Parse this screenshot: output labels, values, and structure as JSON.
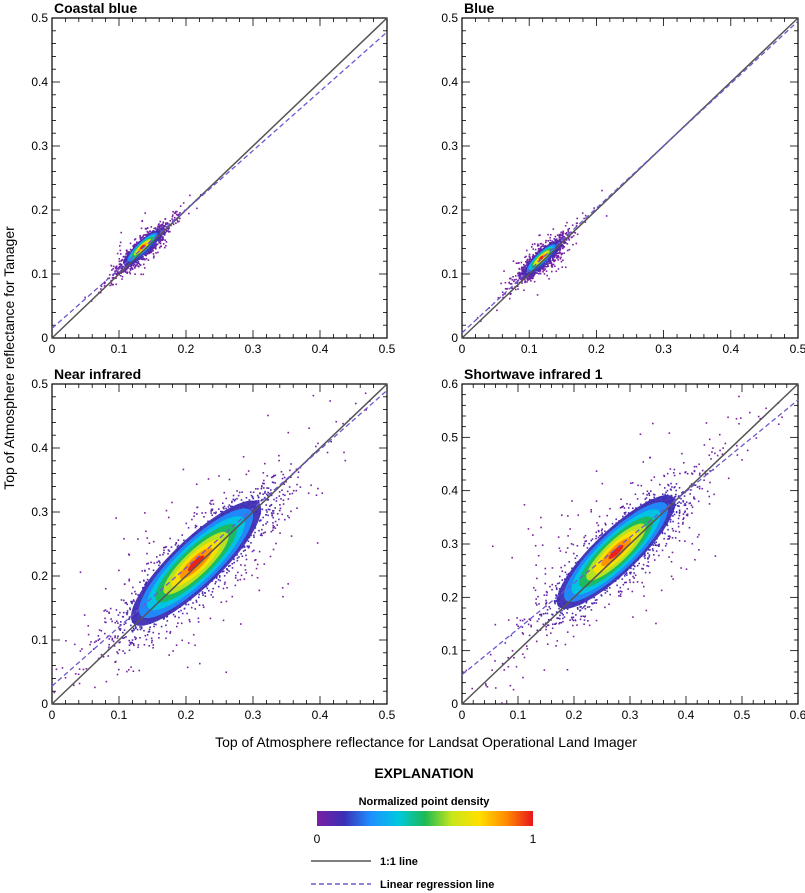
{
  "figure": {
    "xlabel": "Top of Atmosphere reflectance for Landsat Operational Land Imager",
    "ylabel": "Top of Atmosphere reflectance for Tanager"
  },
  "chart_data": [
    {
      "type": "scatter",
      "title": "Coastal blue",
      "xlim": [
        0,
        0.5
      ],
      "ylim": [
        0,
        0.5
      ],
      "xticks": [
        "0",
        "0.1",
        "0.2",
        "0.3",
        "0.4",
        "0.5"
      ],
      "yticks": [
        "0",
        "0.1",
        "0.2",
        "0.3",
        "0.4",
        "0.5"
      ],
      "one_to_one": {
        "x": [
          0,
          0.5
        ],
        "y": [
          0,
          0.5
        ]
      },
      "regression": {
        "x": [
          0,
          0.5
        ],
        "y": [
          0.015,
          0.478
        ]
      },
      "density_cluster": {
        "center": [
          0.135,
          0.142
        ],
        "spread": [
          0.013,
          0.01
        ],
        "tail_to": [
          0.19,
          0.185
        ]
      }
    },
    {
      "type": "scatter",
      "title": "Blue",
      "xlim": [
        0,
        0.5
      ],
      "ylim": [
        0,
        0.5
      ],
      "xticks": [
        "0",
        "0.1",
        "0.2",
        "0.3",
        "0.4",
        "0.5"
      ],
      "yticks": [
        "0",
        "0.1",
        "0.2",
        "0.3",
        "0.4",
        "0.5"
      ],
      "one_to_one": {
        "x": [
          0,
          0.5
        ],
        "y": [
          0,
          0.5
        ]
      },
      "regression": {
        "x": [
          0,
          0.5
        ],
        "y": [
          0.008,
          0.495
        ]
      },
      "density_cluster": {
        "center": [
          0.118,
          0.125
        ],
        "spread": [
          0.012,
          0.01
        ],
        "tail_to": [
          0.17,
          0.17
        ]
      }
    },
    {
      "type": "scatter",
      "title": "Near infrared",
      "xlim": [
        0,
        0.5
      ],
      "ylim": [
        0,
        0.5
      ],
      "xticks": [
        "0",
        "0.1",
        "0.2",
        "0.3",
        "0.4",
        "0.5"
      ],
      "yticks": [
        "0",
        "0.1",
        "0.2",
        "0.3",
        "0.4",
        "0.5"
      ],
      "one_to_one": {
        "x": [
          0,
          0.5
        ],
        "y": [
          0,
          0.5
        ]
      },
      "regression": {
        "x": [
          0,
          0.5
        ],
        "y": [
          0.028,
          0.49
        ]
      },
      "density_cluster": {
        "center": [
          0.215,
          0.22
        ],
        "spread": [
          0.045,
          0.042
        ],
        "tail_to": [
          0.38,
          0.38
        ]
      }
    },
    {
      "type": "scatter",
      "title": "Shortwave infrared 1",
      "xlim": [
        0,
        0.6
      ],
      "ylim": [
        0,
        0.6
      ],
      "xticks": [
        "0",
        "0.1",
        "0.2",
        "0.3",
        "0.4",
        "0.5",
        "0.6"
      ],
      "yticks": [
        "0",
        "0.1",
        "0.2",
        "0.3",
        "0.4",
        "0.5",
        "0.6"
      ],
      "one_to_one": {
        "x": [
          0,
          0.6
        ],
        "y": [
          0,
          0.6
        ]
      },
      "regression": {
        "x": [
          0,
          0.6
        ],
        "y": [
          0.055,
          0.57
        ]
      },
      "density_cluster": {
        "center": [
          0.275,
          0.285
        ],
        "spread": [
          0.05,
          0.045
        ],
        "tail_to": [
          0.5,
          0.5
        ]
      }
    }
  ],
  "explanation": {
    "title": "EXPLANATION",
    "colorbar": {
      "title": "Normalized point density",
      "min_label": "0",
      "max_label": "1",
      "colors": [
        "#7b1fa2",
        "#3b2fb5",
        "#1e90ff",
        "#00c8e0",
        "#1db954",
        "#c8e61a",
        "#ffe000",
        "#ff8c00",
        "#e8161d"
      ]
    },
    "items": [
      {
        "label": "1:1 line",
        "color": "#555555",
        "style": "solid"
      },
      {
        "label": "Linear regression line",
        "color": "#6a5acd",
        "style": "dashed"
      }
    ]
  }
}
